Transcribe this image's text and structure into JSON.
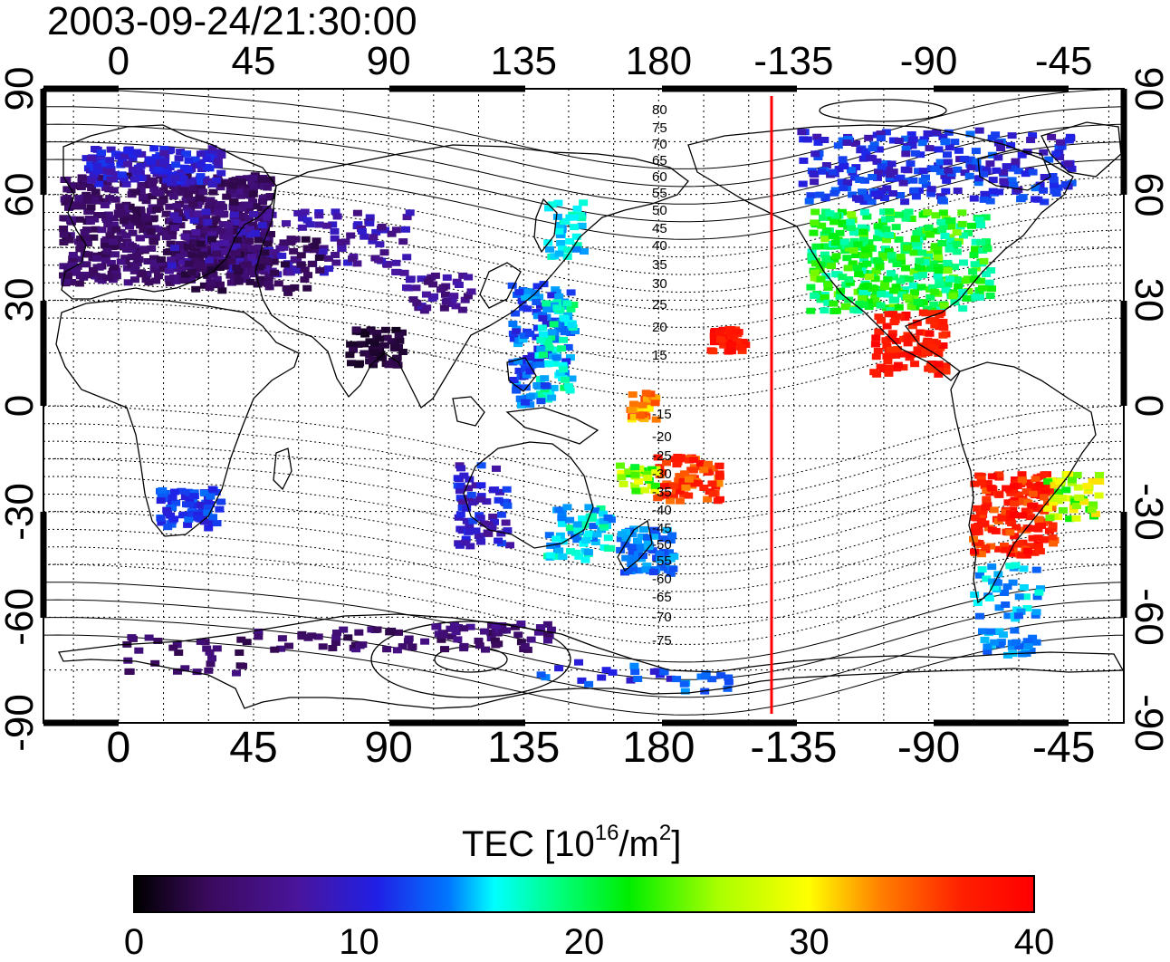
{
  "title": "2003-09-24/21:30:00",
  "map": {
    "x_tick_labels": [
      "0",
      "45",
      "90",
      "135",
      "180",
      "-135",
      "-90",
      "-45"
    ],
    "y_tick_labels": [
      "90",
      "60",
      "30",
      "0",
      "-30",
      "-60",
      "-90"
    ],
    "contour_labels": [
      "80",
      "75",
      "70",
      "65",
      "60",
      "55",
      "50",
      "45",
      "40",
      "35",
      "30",
      "25",
      "20",
      "15",
      "-15",
      "-20",
      "-25",
      "-30",
      "-35",
      "-40",
      "-45",
      "-50",
      "-55",
      "-60",
      "-65",
      "-70",
      "-75"
    ],
    "marker_line_longitude": -145,
    "marker_line_color": "#ff0000"
  },
  "colorbar": {
    "label": "TEC  [10",
    "label_exp": "16",
    "label_unit": "/m",
    "label_unit_exp": "2",
    "label_close": "]",
    "min": 0,
    "max": 40,
    "tick_labels": [
      "0",
      "10",
      "20",
      "30",
      "40"
    ],
    "colormap": [
      "#000000",
      "#3a0a5c",
      "#4a149b",
      "#2020e6",
      "#0078ff",
      "#00ffff",
      "#00ff80",
      "#00ee00",
      "#aaff00",
      "#ffff00",
      "#ff7f00",
      "#ff2000",
      "#ff0000"
    ]
  }
}
